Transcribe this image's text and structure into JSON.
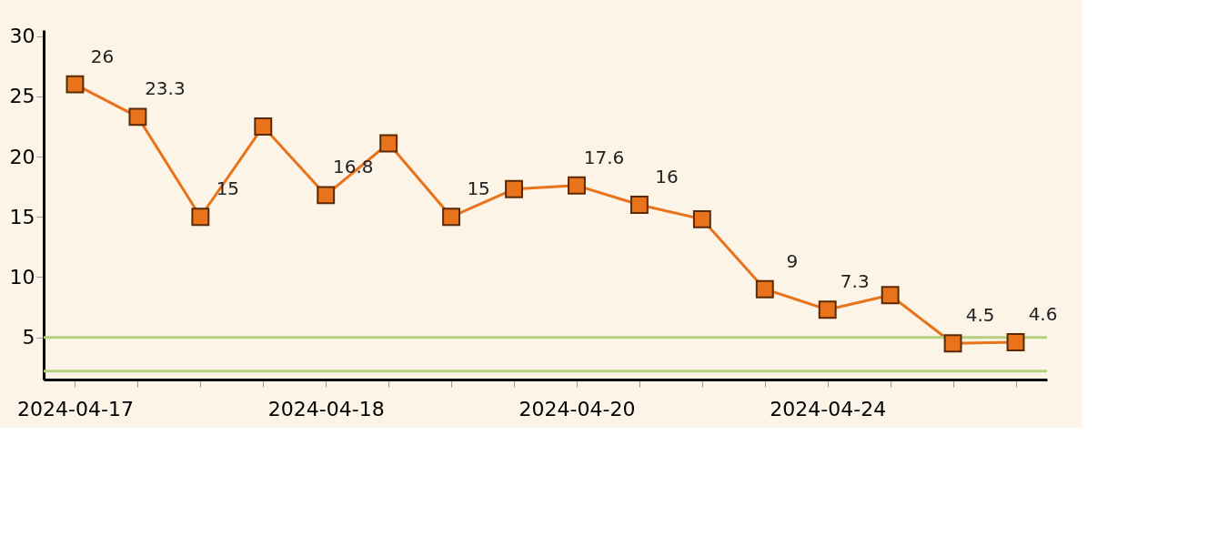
{
  "chart_data": {
    "type": "line",
    "categories": [
      "2024-04-17",
      null,
      null,
      null,
      "2024-04-18",
      null,
      null,
      null,
      "2024-04-20",
      null,
      null,
      null,
      "2024-04-24",
      null,
      null,
      null
    ],
    "series": [
      {
        "color": "#e8731a",
        "values": [
          26,
          23.3,
          15,
          22.5,
          16.8,
          21.1,
          15,
          17.3,
          17.6,
          16,
          14.8,
          9,
          7.3,
          8.5,
          4.5,
          4.6
        ],
        "value_labels": [
          "26",
          "23.3",
          "15",
          null,
          "16.8",
          null,
          "15",
          null,
          "17.6",
          "16",
          null,
          "9",
          "7.3",
          null,
          "4.5",
          "4.6"
        ]
      }
    ],
    "ylim": [
      1.5,
      30.5
    ],
    "yticks": [
      5,
      10,
      15,
      20,
      25,
      30
    ],
    "ref_lines": [
      {
        "axis": "y",
        "value": 5,
        "color": "#b5cf7f"
      },
      {
        "axis": "y",
        "value": 2.2,
        "color": "#b5cf7f"
      }
    ],
    "marker": "square",
    "line_style": "solid",
    "grid": false
  }
}
